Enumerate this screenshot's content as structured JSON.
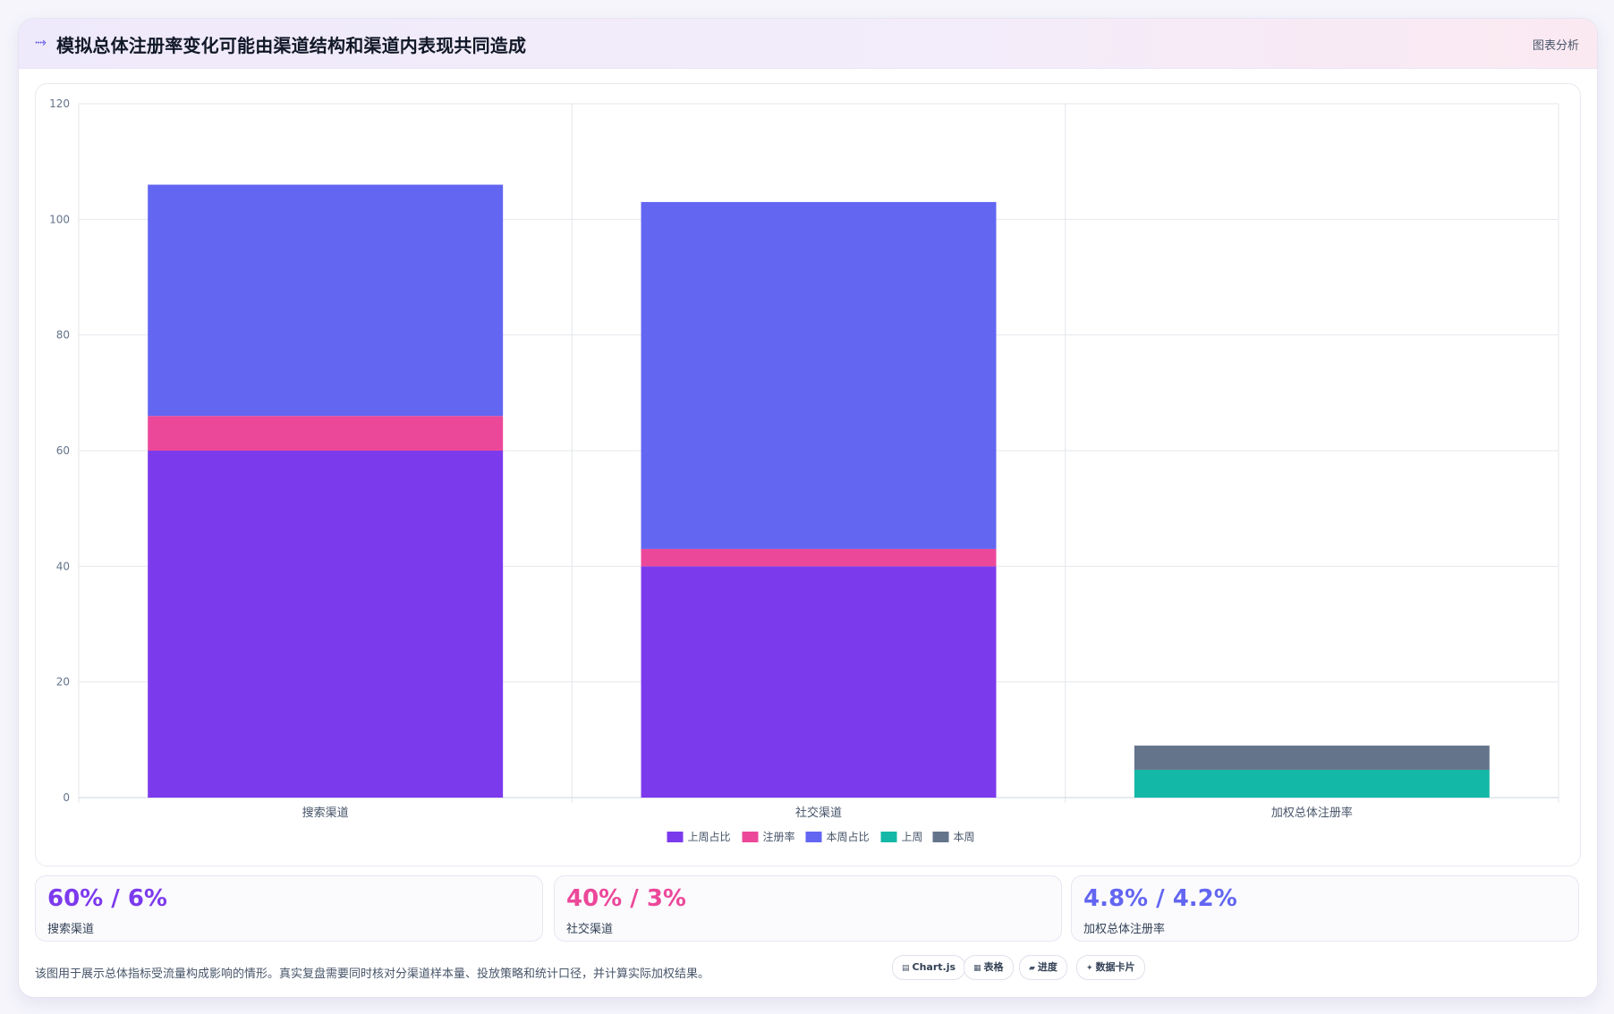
{
  "header": {
    "icon": "trend-line-icon",
    "title": "模拟总体注册率变化可能由渠道结构和渠道内表现共同造成",
    "action_label": "图表分析"
  },
  "chart_data": {
    "type": "bar",
    "stacked": true,
    "categories": [
      "搜索渠道",
      "社交渠道",
      "加权总体注册率"
    ],
    "series": [
      {
        "name": "上周占比",
        "color": "#7c3aed",
        "values": [
          60,
          40,
          0
        ]
      },
      {
        "name": "注册率",
        "color": "#ec4899",
        "values": [
          6,
          3,
          0
        ]
      },
      {
        "name": "本周占比",
        "color": "#6366f1",
        "values": [
          40,
          60,
          0
        ]
      },
      {
        "name": "上周",
        "color": "#14b8a6",
        "values": [
          0,
          0,
          4.8
        ]
      },
      {
        "name": "本周",
        "color": "#64748b",
        "values": [
          0,
          0,
          4.2
        ]
      }
    ],
    "ylim": [
      0,
      120
    ],
    "yticks": [
      0,
      20,
      40,
      60,
      80,
      100,
      120
    ],
    "grid": true,
    "legend_position": "bottom"
  },
  "stats": [
    {
      "value": "60% / 6%",
      "label": "搜索渠道",
      "color": "#7c3aed"
    },
    {
      "value": "40% / 3%",
      "label": "社交渠道",
      "color": "#ec4899"
    },
    {
      "value": "4.8% / 4.2%",
      "label": "加权总体注册率",
      "color": "#6366f1"
    }
  ],
  "footer": {
    "note": "该图用于展示总体指标受流量构成影响的情形。真实复盘需要同时核对分渠道样本量、投放策略和统计口径，并计算实际加权结果。"
  },
  "tags": [
    {
      "icon": "chart-icon",
      "glyph": "▤",
      "label": "Chart.js"
    },
    {
      "icon": "table-icon",
      "glyph": "▦",
      "label": "表格"
    },
    {
      "icon": "progress-icon",
      "glyph": "▰",
      "label": "进度"
    },
    {
      "icon": "sparkle-icon",
      "glyph": "✦",
      "label": "数据卡片"
    }
  ]
}
